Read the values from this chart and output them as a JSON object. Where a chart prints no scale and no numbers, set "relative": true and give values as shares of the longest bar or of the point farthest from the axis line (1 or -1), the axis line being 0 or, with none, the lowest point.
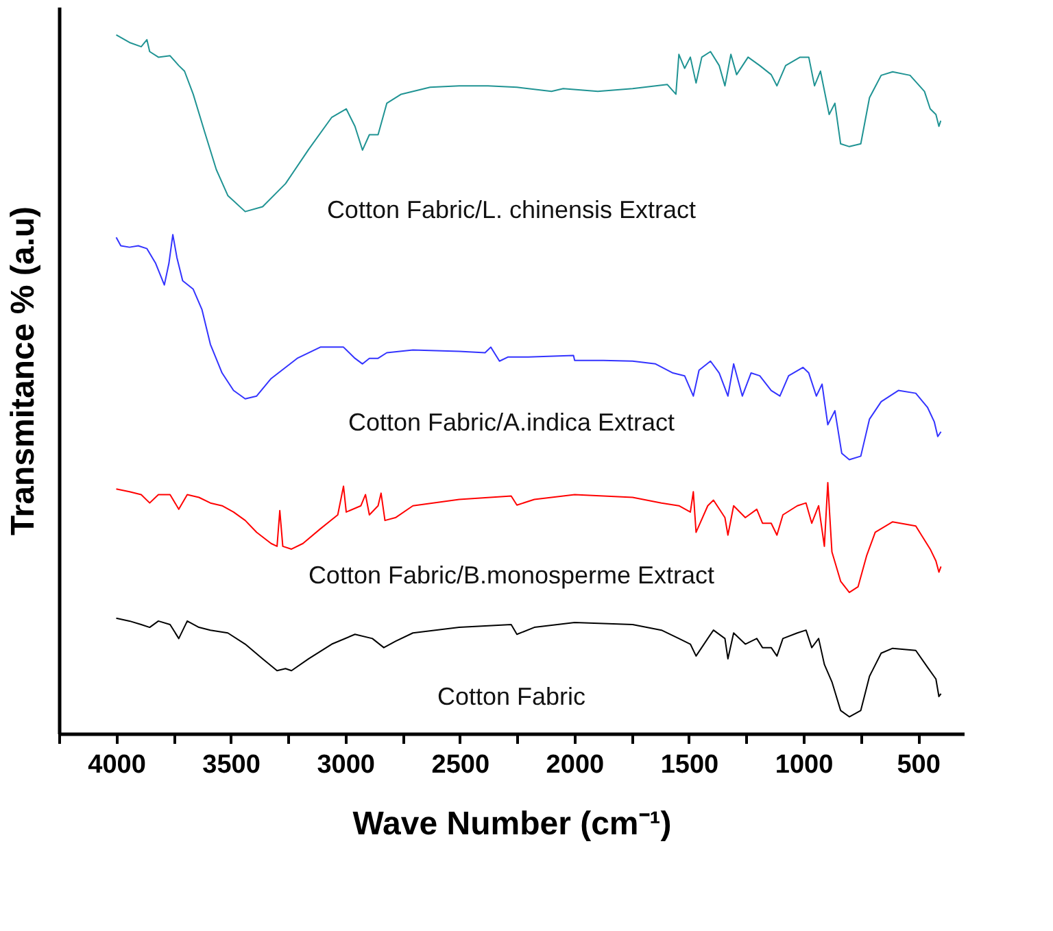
{
  "chart_data": {
    "type": "line",
    "relative": true,
    "xlabel": "Wave Number (cm⁻¹)",
    "ylabel": "Transmitance % (a.u)",
    "xlim": [
      4250,
      300
    ],
    "xticks": [
      {
        "value": 4250,
        "label": null
      },
      4000,
      {
        "value": 3750,
        "label": null
      },
      3500,
      {
        "value": 3250,
        "label": null
      },
      3000,
      {
        "value": 2750,
        "label": null
      },
      2500,
      {
        "value": 2250,
        "label": null
      },
      2000,
      {
        "value": 1750,
        "label": null
      },
      1500,
      {
        "value": 1250,
        "label": null
      },
      1000,
      {
        "value": 750,
        "label": null
      },
      500
    ],
    "grid": false,
    "legend": false,
    "series": [
      {
        "name": "Cotton Fabric/L. chinensis Extract",
        "color": "#1f9393",
        "x": [
          4000,
          3942,
          3891,
          3866,
          3854,
          3816,
          3765,
          3727,
          3702,
          3664,
          3614,
          3563,
          3513,
          3437,
          3361,
          3261,
          3160,
          3059,
          2996,
          2958,
          2925,
          2895,
          2857,
          2819,
          2756,
          2630,
          2503,
          2377,
          2251,
          2100,
          2049,
          1898,
          1746,
          1595,
          1557,
          1544,
          1519,
          1494,
          1469,
          1444,
          1406,
          1368,
          1343,
          1317,
          1292,
          1242,
          1191,
          1141,
          1116,
          1078,
          1015,
          977,
          952,
          926,
          888,
          863,
          838,
          800,
          750,
          712,
          661,
          611,
          535,
          472,
          447,
          422,
          409,
          401
        ],
        "values": [
          1,
          0.989,
          0.983,
          0.993,
          0.976,
          0.968,
          0.97,
          0.956,
          0.948,
          0.915,
          0.861,
          0.807,
          0.77,
          0.747,
          0.754,
          0.787,
          0.836,
          0.882,
          0.894,
          0.869,
          0.835,
          0.857,
          0.857,
          0.902,
          0.915,
          0.925,
          0.927,
          0.927,
          0.925,
          0.919,
          0.923,
          0.919,
          0.923,
          0.929,
          0.915,
          0.972,
          0.952,
          0.968,
          0.931,
          0.968,
          0.976,
          0.956,
          0.927,
          0.972,
          0.943,
          0.968,
          0.956,
          0.943,
          0.927,
          0.956,
          0.968,
          0.968,
          0.927,
          0.948,
          0.886,
          0.902,
          0.844,
          0.84,
          0.844,
          0.91,
          0.942,
          0.947,
          0.942,
          0.919,
          0.894,
          0.886,
          0.869,
          0.877
        ]
      },
      {
        "name": "Cotton Fabric/A.indica Extract",
        "color": "#3333ff",
        "x": [
          4000,
          3980,
          3942,
          3904,
          3866,
          3828,
          3790,
          3770,
          3753,
          3735,
          3710,
          3664,
          3626,
          3589,
          3538,
          3488,
          3437,
          3387,
          3324,
          3210,
          3109,
          3008,
          2958,
          2925,
          2895,
          2857,
          2819,
          2705,
          2503,
          2390,
          2365,
          2327,
          2289,
          2201,
          2004,
          1999,
          1873,
          1746,
          1646,
          1570,
          1519,
          1481,
          1456,
          1406,
          1368,
          1330,
          1305,
          1267,
          1229,
          1191,
          1141,
          1103,
          1065,
          1002,
          977,
          944,
          919,
          894,
          863,
          833,
          800,
          750,
          712,
          661,
          586,
          510,
          459,
          429,
          414,
          400
        ],
        "values": [
          0.71,
          0.698,
          0.696,
          0.698,
          0.694,
          0.673,
          0.642,
          0.673,
          0.714,
          0.681,
          0.648,
          0.636,
          0.607,
          0.557,
          0.516,
          0.491,
          0.479,
          0.483,
          0.508,
          0.537,
          0.553,
          0.553,
          0.537,
          0.529,
          0.537,
          0.537,
          0.545,
          0.549,
          0.547,
          0.545,
          0.553,
          0.533,
          0.539,
          0.539,
          0.541,
          0.534,
          0.534,
          0.533,
          0.529,
          0.516,
          0.512,
          0.483,
          0.52,
          0.533,
          0.516,
          0.483,
          0.529,
          0.483,
          0.516,
          0.512,
          0.491,
          0.483,
          0.512,
          0.524,
          0.516,
          0.483,
          0.5,
          0.442,
          0.462,
          0.401,
          0.392,
          0.397,
          0.45,
          0.475,
          0.491,
          0.487,
          0.467,
          0.446,
          0.425,
          0.432
        ]
      },
      {
        "name": "Cotton Fabric/B.monosperme Extract",
        "color": "#ff0000",
        "x": [
          4000,
          3942,
          3891,
          3854,
          3816,
          3765,
          3727,
          3690,
          3639,
          3589,
          3538,
          3488,
          3437,
          3387,
          3324,
          3298,
          3286,
          3273,
          3235,
          3185,
          3109,
          3033,
          3008,
          2996,
          2932,
          2912,
          2895,
          2857,
          2844,
          2827,
          2781,
          2705,
          2503,
          2276,
          2251,
          2175,
          1999,
          1746,
          1620,
          1544,
          1494,
          1481,
          1469,
          1418,
          1393,
          1343,
          1330,
          1305,
          1254,
          1204,
          1179,
          1141,
          1116,
          1090,
          1027,
          989,
          964,
          934,
          909,
          894,
          876,
          838,
          800,
          762,
          724,
          687,
          611,
          510,
          447,
          422,
          409,
          400
        ],
        "values": [
          0.35,
          0.346,
          0.342,
          0.33,
          0.342,
          0.342,
          0.321,
          0.342,
          0.338,
          0.33,
          0.326,
          0.317,
          0.305,
          0.288,
          0.272,
          0.268,
          0.319,
          0.268,
          0.264,
          0.272,
          0.293,
          0.313,
          0.354,
          0.317,
          0.326,
          0.342,
          0.313,
          0.326,
          0.344,
          0.305,
          0.309,
          0.326,
          0.335,
          0.34,
          0.327,
          0.335,
          0.342,
          0.338,
          0.33,
          0.326,
          0.317,
          0.346,
          0.288,
          0.326,
          0.334,
          0.309,
          0.284,
          0.326,
          0.309,
          0.321,
          0.301,
          0.301,
          0.284,
          0.313,
          0.326,
          0.33,
          0.301,
          0.326,
          0.268,
          0.359,
          0.26,
          0.218,
          0.202,
          0.21,
          0.255,
          0.288,
          0.303,
          0.297,
          0.264,
          0.247,
          0.231,
          0.239
        ]
      },
      {
        "name": "Cotton Fabric",
        "color": "#000000",
        "x": [
          4000,
          3942,
          3891,
          3854,
          3816,
          3765,
          3727,
          3690,
          3639,
          3589,
          3513,
          3437,
          3361,
          3298,
          3261,
          3235,
          3160,
          3059,
          2958,
          2882,
          2832,
          2781,
          2705,
          2503,
          2276,
          2251,
          2175,
          1999,
          1746,
          1620,
          1544,
          1494,
          1469,
          1418,
          1393,
          1343,
          1330,
          1305,
          1254,
          1204,
          1179,
          1141,
          1116,
          1090,
          1027,
          989,
          964,
          934,
          909,
          876,
          838,
          800,
          750,
          712,
          661,
          611,
          510,
          459,
          422,
          409,
          400
        ],
        "values": [
          0.165,
          0.161,
          0.156,
          0.152,
          0.161,
          0.156,
          0.136,
          0.161,
          0.152,
          0.148,
          0.144,
          0.128,
          0.107,
          0.09,
          0.093,
          0.09,
          0.107,
          0.128,
          0.142,
          0.136,
          0.123,
          0.132,
          0.144,
          0.152,
          0.156,
          0.142,
          0.152,
          0.159,
          0.156,
          0.148,
          0.136,
          0.128,
          0.111,
          0.136,
          0.148,
          0.136,
          0.107,
          0.144,
          0.128,
          0.136,
          0.123,
          0.123,
          0.111,
          0.136,
          0.144,
          0.148,
          0.123,
          0.136,
          0.099,
          0.074,
          0.033,
          0.024,
          0.033,
          0.082,
          0.115,
          0.122,
          0.119,
          0.095,
          0.078,
          0.053,
          0.057
        ]
      }
    ]
  }
}
